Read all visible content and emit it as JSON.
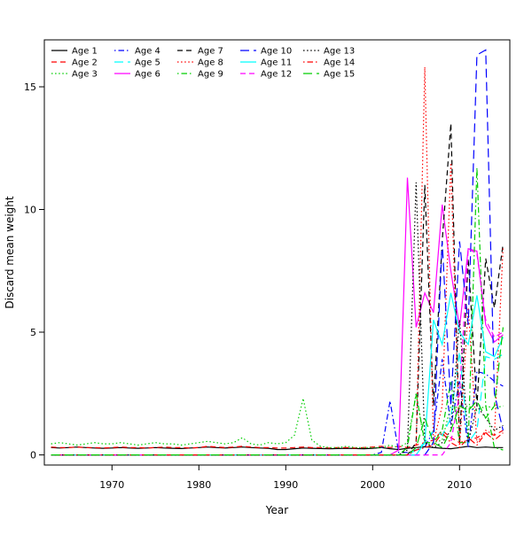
{
  "figure": {
    "background": "#ffffff",
    "frame_color": "#000000"
  },
  "chart_data": {
    "type": "line",
    "title": "",
    "xlabel": "Year",
    "ylabel": "Discard mean weight",
    "x_ticks": [
      1970,
      1980,
      1990,
      2000,
      2010
    ],
    "y_ticks": [
      0,
      5,
      10,
      15
    ],
    "xlim": [
      1963,
      2015
    ],
    "ylim": [
      0,
      16.5
    ],
    "grid": false,
    "legend_position": "top-left",
    "legend_columns": 5,
    "legend_rows": 3,
    "x": [
      1963,
      1964,
      1965,
      1966,
      1967,
      1968,
      1969,
      1970,
      1971,
      1972,
      1973,
      1974,
      1975,
      1976,
      1977,
      1978,
      1979,
      1980,
      1981,
      1982,
      1983,
      1984,
      1985,
      1986,
      1987,
      1988,
      1989,
      1990,
      1991,
      1992,
      1993,
      1994,
      1995,
      1996,
      1997,
      1998,
      1999,
      2000,
      2001,
      2002,
      2003,
      2004,
      2005,
      2006,
      2007,
      2008,
      2009,
      2010,
      2011,
      2012,
      2013,
      2014,
      2015
    ],
    "series": [
      {
        "name": "Age 1",
        "color": "#000000",
        "lty": "solid",
        "from_year": 1963,
        "values": [
          0.3,
          0.28,
          0.3,
          0.32,
          0.3,
          0.28,
          0.27,
          0.28,
          0.3,
          0.28,
          0.27,
          0.28,
          0.3,
          0.28,
          0.27,
          0.26,
          0.28,
          0.3,
          0.32,
          0.3,
          0.28,
          0.3,
          0.32,
          0.3,
          0.28,
          0.27,
          0.22,
          0.22,
          0.25,
          0.28,
          0.27,
          0.26,
          0.25,
          0.26,
          0.27,
          0.26,
          0.25,
          0.27,
          0.3,
          0.25,
          0.22,
          0.27,
          0.3,
          0.33,
          0.3,
          0.27,
          0.25,
          0.3,
          0.35,
          0.3,
          0.32,
          0.3,
          0.3
        ]
      },
      {
        "name": "Age 2",
        "color": "#FF0000",
        "lty": "dashed",
        "from_year": 1963,
        "values": [
          0.32,
          0.3,
          0.3,
          0.32,
          0.3,
          0.3,
          0.28,
          0.3,
          0.32,
          0.3,
          0.3,
          0.28,
          0.3,
          0.32,
          0.3,
          0.3,
          0.28,
          0.3,
          0.35,
          0.32,
          0.3,
          0.32,
          0.35,
          0.32,
          0.3,
          0.3,
          0.28,
          0.28,
          0.3,
          0.32,
          0.3,
          0.3,
          0.28,
          0.3,
          0.3,
          0.28,
          0.3,
          0.32,
          0.35,
          0.3,
          0.35,
          0.3,
          0.4,
          0.5,
          0.6,
          1.0,
          0.7,
          0.5,
          0.6,
          0.7,
          0.9,
          0.8,
          1.0
        ]
      },
      {
        "name": "Age 3",
        "color": "#00CD00",
        "lty": "dotted",
        "from_year": 1963,
        "values": [
          0.45,
          0.5,
          0.45,
          0.4,
          0.45,
          0.5,
          0.45,
          0.45,
          0.5,
          0.45,
          0.4,
          0.45,
          0.5,
          0.45,
          0.45,
          0.4,
          0.45,
          0.5,
          0.55,
          0.5,
          0.45,
          0.5,
          0.7,
          0.45,
          0.4,
          0.5,
          0.45,
          0.5,
          0.8,
          2.3,
          0.6,
          0.35,
          0.3,
          0.3,
          0.35,
          0.3,
          0.3,
          0.3,
          0.3,
          0.4,
          0.3,
          0.5,
          2.5,
          0.4,
          0.5,
          0.6,
          2.0,
          1.9,
          2.0,
          1.8,
          2.0,
          1.9,
          2.0
        ]
      },
      {
        "name": "Age 4",
        "color": "#0000FF",
        "lty": "dotdash",
        "from_year": 2001,
        "values": [
          0.1,
          2.2,
          0.1,
          0.1,
          0.2,
          0.3,
          1.0,
          3.9,
          1.2,
          3.0,
          0.3,
          3.4,
          3.3,
          3.0,
          2.8
        ]
      },
      {
        "name": "Age 5",
        "color": "#00FFFF",
        "lty": "longdash",
        "from_year": 2005,
        "values": [
          0.2,
          0.5,
          1.0,
          0.8,
          1.5,
          4.2,
          0.5,
          1.0,
          4.0,
          3.9,
          4.1
        ]
      },
      {
        "name": "Age 6",
        "color": "#FF00FF",
        "lty": "solid",
        "from_year": 2003,
        "values": [
          0.2,
          11.3,
          5.2,
          6.6,
          5.8,
          10.2,
          7.5,
          5.2,
          8.4,
          8.3,
          5.3,
          4.6,
          4.9
        ]
      },
      {
        "name": "Age 7",
        "color": "#000000",
        "lty": "dashed",
        "from_year": 2005,
        "values": [
          0.5,
          11.0,
          2.0,
          8.7,
          13.5,
          0.5,
          8.0,
          2.0,
          8.0,
          6.0,
          8.6
        ]
      },
      {
        "name": "Age 8",
        "color": "#FF0000",
        "lty": "dotted",
        "from_year": 2005,
        "values": [
          0.3,
          15.8,
          0.5,
          2.0,
          11.9,
          0.3,
          6.0,
          0.5,
          1.0,
          0.8,
          8.5
        ]
      },
      {
        "name": "Age 9",
        "color": "#00CD00",
        "lty": "dotdash",
        "from_year": 2004,
        "values": [
          0.3,
          2.5,
          0.5,
          0.5,
          1.0,
          3.0,
          0.5,
          0.5,
          11.7,
          2.0,
          0.3,
          0.2
        ]
      },
      {
        "name": "Age 10",
        "color": "#0000FF",
        "lty": "longdash",
        "from_year": 2007,
        "values": [
          0.5,
          8.7,
          2.0,
          8.7,
          5.3,
          16.3,
          16.5,
          2.5,
          1.0
        ]
      },
      {
        "name": "Age 11",
        "color": "#00FFFF",
        "lty": "solid",
        "from_year": 2006,
        "values": [
          0.5,
          5.5,
          4.5,
          6.6,
          5.0,
          4.5,
          6.5,
          4.2,
          4.0,
          4.8
        ]
      },
      {
        "name": "Age 12",
        "color": "#FF00FF",
        "lty": "dashed",
        "from_year": 2009,
        "values": [
          0.5,
          2.5,
          8.4,
          8.2,
          5.5,
          4.8,
          5.0
        ]
      },
      {
        "name": "Age 13",
        "color": "#000000",
        "lty": "dotted",
        "from_year": 2004,
        "values": [
          0.2,
          11.1,
          0.5,
          0.3,
          0.5,
          1.0,
          5.5,
          0.5,
          2.0,
          1.5,
          1.0,
          1.2
        ]
      },
      {
        "name": "Age 14",
        "color": "#FF0000",
        "lty": "dotdash",
        "from_year": 2005,
        "values": [
          0.2,
          0.3,
          0.4,
          0.9,
          0.5,
          0.3,
          0.7,
          0.4,
          0.9,
          0.6,
          0.9
        ]
      },
      {
        "name": "Age 15",
        "color": "#00CD00",
        "lty": "longdash",
        "from_year": 2005,
        "values": [
          0.3,
          1.5,
          0.5,
          0.3,
          1.0,
          2.0,
          1.8,
          2.2,
          1.5,
          2.0,
          5.2
        ]
      }
    ]
  }
}
